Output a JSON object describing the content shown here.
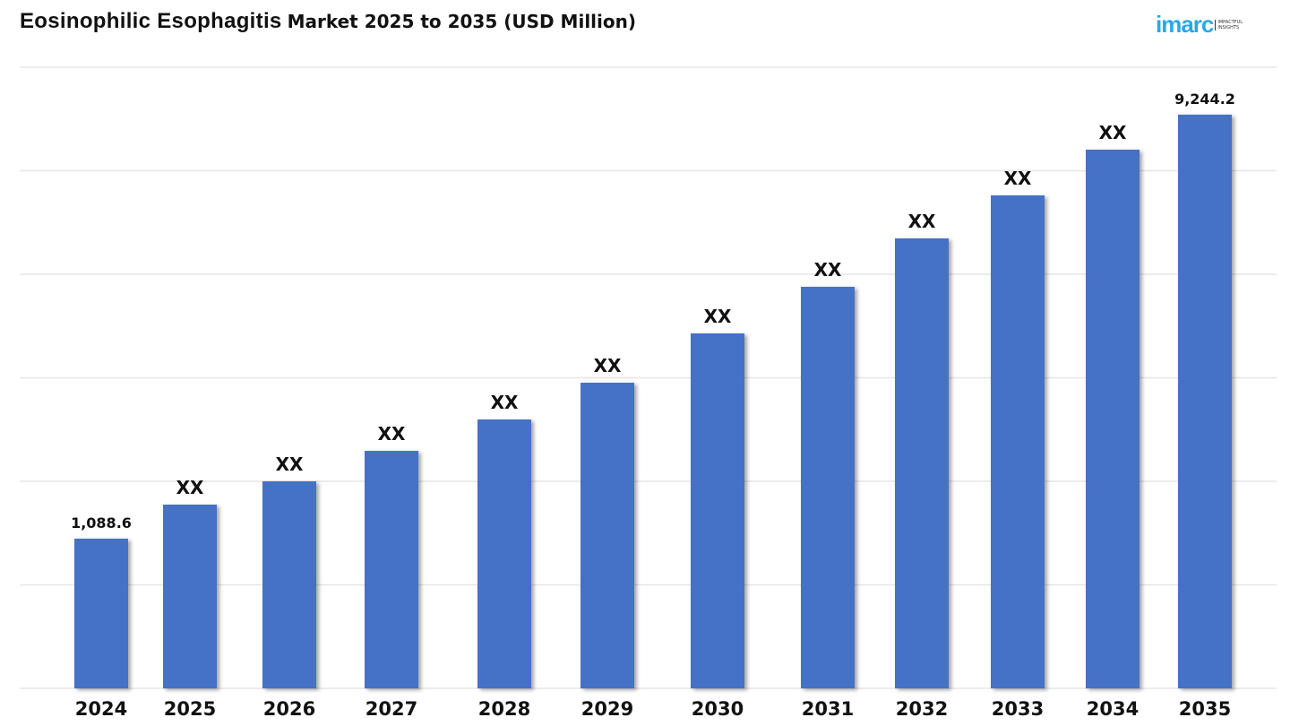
{
  "title_main": "Eosinophilic Esophagitis",
  "title_sub": "Market 2025 to 2035 (USD Million)",
  "logo": {
    "word": "imarc",
    "tagline": "IMPACTFUL INSIGHTS"
  },
  "chart_data": {
    "type": "bar",
    "title": "Eosinophilic Esophagitis Market 2025 to 2035 (USD Million)",
    "xlabel": "",
    "ylabel": "USD Million",
    "categories": [
      "2024",
      "2025",
      "2026",
      "2027",
      "2028",
      "2029",
      "2030",
      "2031",
      "2032",
      "2033",
      "2034",
      "2035"
    ],
    "values": [
      1088.6,
      1743,
      2191,
      2777,
      3381,
      4088,
      5036,
      5933,
      6864,
      7691,
      8570,
      9244.2
    ],
    "data_labels": [
      "1,088.6",
      "XX",
      "XX",
      "XX",
      "XX",
      "XX",
      "XX",
      "XX",
      "XX",
      "XX",
      "XX",
      "9,244.2"
    ],
    "ylim": [
      -1791,
      10156
    ],
    "grid": true,
    "gridline_count": 7,
    "bar_color": "#4472c4"
  }
}
